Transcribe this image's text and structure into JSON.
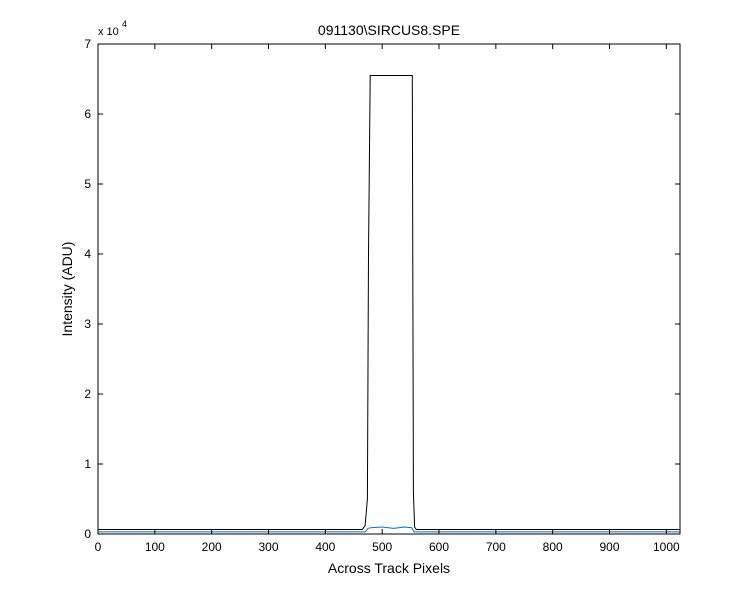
{
  "chart_data": {
    "type": "line",
    "title": "091130\\SIRCUS8.SPE",
    "xlabel": "Across Track Pixels",
    "ylabel": "Intensity (ADU)",
    "xlim": [
      0,
      1024
    ],
    "ylim": [
      0,
      7
    ],
    "y_scale_multiplier": "x 10",
    "y_scale_exponent": "4",
    "xticks": [
      "0",
      "100",
      "200",
      "300",
      "400",
      "500",
      "600",
      "700",
      "800",
      "900",
      "1000"
    ],
    "yticks": [
      "0",
      "1",
      "2",
      "3",
      "4",
      "5",
      "6",
      "7"
    ],
    "grid": false,
    "series": [
      {
        "color": "#000000",
        "x": [
          0,
          465,
          470,
          474,
          476,
          479,
          483,
          490,
          500,
          520,
          540,
          550,
          553,
          555,
          557,
          560,
          600,
          700,
          800,
          900,
          1024
        ],
        "y": [
          0.065,
          0.065,
          0.12,
          0.5,
          4.0,
          6.55,
          6.55,
          6.55,
          6.55,
          6.55,
          6.55,
          6.55,
          6.55,
          0.6,
          0.1,
          0.065,
          0.065,
          0.065,
          0.065,
          0.065,
          0.065
        ]
      },
      {
        "color": "#0070c0",
        "x": [
          0,
          100,
          200,
          300,
          400,
          470,
          475,
          480,
          500,
          520,
          540,
          552,
          556,
          600,
          700,
          800,
          900,
          1024
        ],
        "y": [
          0.03,
          0.03,
          0.03,
          0.03,
          0.03,
          0.03,
          0.08,
          0.09,
          0.1,
          0.08,
          0.1,
          0.09,
          0.03,
          0.03,
          0.03,
          0.03,
          0.03,
          0.03
        ]
      }
    ]
  }
}
